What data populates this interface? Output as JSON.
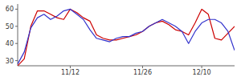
{
  "chart_data": {
    "type": "line",
    "categories": [
      null,
      null,
      null,
      null,
      null,
      null,
      null,
      null,
      "11/12",
      null,
      null,
      null,
      null,
      null,
      null,
      null,
      null,
      null,
      null,
      "11/26",
      null,
      null,
      null,
      null,
      null,
      null,
      null,
      null,
      "12/10",
      null,
      null,
      null,
      null,
      null
    ],
    "series": [
      {
        "color": "#cc0000",
        "values": [
          27,
          31,
          50,
          59,
          59,
          57,
          55,
          54,
          60,
          58,
          55,
          53,
          45,
          43,
          42,
          42,
          43,
          44,
          45,
          47,
          50,
          52,
          53,
          51,
          48,
          47,
          45,
          52,
          60,
          57,
          43,
          42,
          46,
          50
        ]
      },
      {
        "color": "#3333cc",
        "values": [
          28,
          35,
          49,
          55,
          57,
          54,
          56,
          59,
          60,
          57,
          54,
          48,
          43,
          42,
          41,
          43,
          44,
          44,
          46,
          47,
          50,
          52,
          54,
          52,
          50,
          47,
          40,
          47,
          52,
          54,
          54,
          52,
          47,
          36
        ]
      }
    ],
    "ylim": [
      27,
      63
    ],
    "yticks": [
      30,
      40,
      50,
      60
    ]
  }
}
